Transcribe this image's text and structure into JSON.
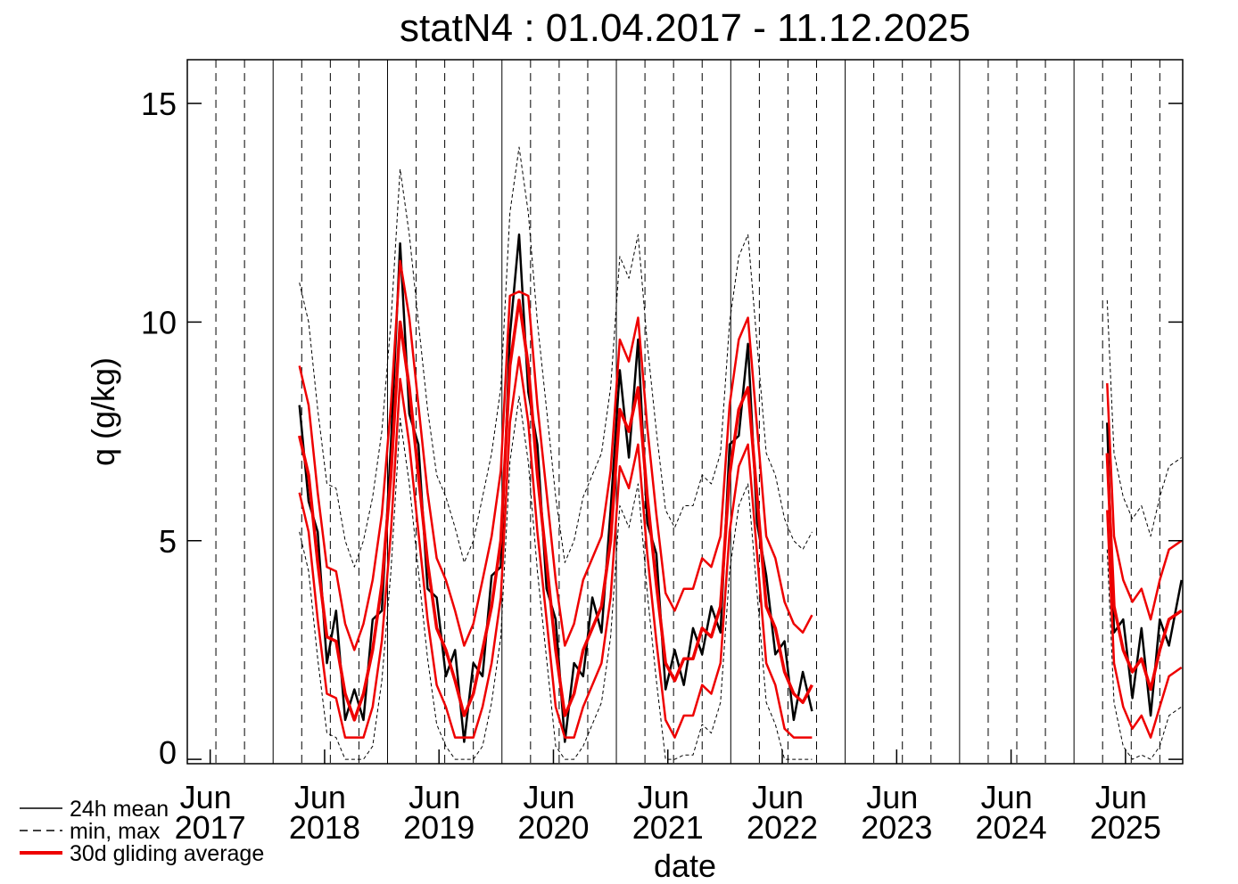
{
  "chart_data": {
    "type": "line",
    "title": "statN4 : 01.04.2017 - 11.12.2025",
    "xlabel": "date",
    "ylabel": "q (g/kg)",
    "xlim": [
      2017.25,
      2025.95
    ],
    "ylim": [
      -0.1,
      16
    ],
    "yticks": [
      0,
      5,
      10,
      15
    ],
    "xticks": [
      {
        "value": 2017.45,
        "label": "Jun 2017"
      },
      {
        "value": 2018.45,
        "label": "Jun 2018"
      },
      {
        "value": 2019.45,
        "label": "Jun 2019"
      },
      {
        "value": 2020.45,
        "label": "Jun 2020"
      },
      {
        "value": 2021.45,
        "label": "Jun 2021"
      },
      {
        "value": 2022.45,
        "label": "Jun 2022"
      },
      {
        "value": 2023.45,
        "label": "Jun 2023"
      },
      {
        "value": 2024.45,
        "label": "Jun 2024"
      },
      {
        "value": 2025.45,
        "label": "Jun 2025"
      }
    ],
    "x": [
      2018.23,
      2018.31,
      2018.39,
      2018.47,
      2018.55,
      2018.63,
      2018.71,
      2018.79,
      2018.87,
      2018.95,
      2019.03,
      2019.11,
      2019.19,
      2019.27,
      2019.35,
      2019.43,
      2019.51,
      2019.59,
      2019.67,
      2019.75,
      2019.83,
      2019.91,
      2019.99,
      2020.07,
      2020.15,
      2020.23,
      2020.31,
      2020.39,
      2020.47,
      2020.55,
      2020.63,
      2020.71,
      2020.79,
      2020.87,
      2020.95,
      2021.03,
      2021.11,
      2021.19,
      2021.27,
      2021.35,
      2021.43,
      2021.51,
      2021.59,
      2021.67,
      2021.75,
      2021.83,
      2021.91,
      2021.99,
      2022.07,
      2022.15,
      2022.23,
      2022.31,
      2022.39,
      2022.47,
      2022.55,
      2022.63,
      2022.71,
      2024.0,
      2025.29,
      2025.35,
      2025.43,
      2025.51,
      2025.59,
      2025.67,
      2025.75,
      2025.83,
      2025.94
    ],
    "series": [
      {
        "name": "24h mean",
        "color": "#000000",
        "values": [
          8.1,
          5.9,
          5.2,
          2.2,
          3.4,
          0.9,
          1.6,
          0.9,
          3.2,
          3.4,
          7.2,
          11.8,
          7.9,
          7.2,
          3.9,
          3.7,
          1.9,
          2.5,
          0.4,
          2.2,
          1.9,
          4.2,
          4.4,
          9.7,
          12.0,
          8.4,
          7.2,
          3.9,
          3.2,
          0.4,
          2.2,
          1.9,
          3.7,
          2.9,
          5.7,
          8.9,
          6.9,
          9.6,
          5.4,
          4.7,
          1.6,
          2.5,
          1.7,
          3.0,
          2.4,
          3.5,
          2.9,
          7.2,
          7.4,
          9.5,
          5.4,
          4.2,
          2.4,
          2.7,
          0.9,
          2.0,
          1.1,
          null,
          7.7,
          2.9,
          3.2,
          1.4,
          3.0,
          1.0,
          3.2,
          2.6,
          4.1
        ]
      },
      {
        "name": "min, max",
        "color": "#000000",
        "dashed": true,
        "min": [
          5.2,
          4.3,
          2.3,
          0.6,
          0.5,
          0,
          0,
          0,
          0.3,
          1.8,
          4.3,
          7.8,
          6.3,
          4.3,
          2.3,
          0.8,
          0.3,
          0,
          0,
          0,
          0.3,
          1.3,
          2.8,
          6.8,
          8.3,
          6.8,
          4.3,
          2.3,
          0.3,
          0,
          0,
          0.3,
          0.8,
          1.3,
          2.8,
          5.8,
          5.3,
          6.3,
          3.8,
          1.8,
          0,
          0,
          0.1,
          0.1,
          0.8,
          0.6,
          1.3,
          4.3,
          5.8,
          6.3,
          3.8,
          1.3,
          0.8,
          0,
          0,
          0,
          0,
          null,
          4.8,
          1.3,
          0.3,
          0,
          0.1,
          0,
          0.3,
          1.0,
          1.2
        ],
        "max": [
          10.9,
          10.0,
          8.0,
          6.3,
          6.2,
          5.0,
          4.4,
          5.0,
          6.0,
          7.5,
          10.0,
          13.5,
          12.0,
          10.0,
          8.0,
          6.5,
          6.0,
          5.3,
          4.5,
          5.0,
          6.0,
          7.0,
          8.5,
          12.5,
          14.0,
          12.5,
          10.0,
          8.0,
          6.0,
          4.5,
          5.0,
          6.0,
          6.5,
          7.0,
          8.5,
          11.5,
          11.0,
          12.0,
          9.5,
          7.5,
          5.7,
          5.3,
          5.8,
          5.8,
          6.5,
          6.3,
          7.0,
          10.0,
          11.5,
          12.0,
          9.5,
          7.0,
          6.5,
          5.5,
          5.0,
          4.8,
          5.2,
          null,
          10.5,
          7.0,
          6.0,
          5.5,
          5.8,
          5.1,
          6.0,
          6.7,
          6.9
        ]
      },
      {
        "name": "30d gliding average",
        "color": "#ee0000",
        "values": [
          7.4,
          6.5,
          4.5,
          2.8,
          2.7,
          1.5,
          0.9,
          1.5,
          2.5,
          4.0,
          6.5,
          10.0,
          8.5,
          6.5,
          4.5,
          3.0,
          2.5,
          1.8,
          1.0,
          1.5,
          2.5,
          3.5,
          5.0,
          9.0,
          10.5,
          9.0,
          6.5,
          4.5,
          2.5,
          1.0,
          1.5,
          2.5,
          3.0,
          3.5,
          5.0,
          8.0,
          7.5,
          8.5,
          6.0,
          4.0,
          2.2,
          1.8,
          2.3,
          2.3,
          3.0,
          2.8,
          3.5,
          6.5,
          8.0,
          8.5,
          6.0,
          3.5,
          3.0,
          2.0,
          1.5,
          1.3,
          1.7,
          null,
          7.0,
          3.5,
          2.5,
          2.0,
          2.3,
          1.6,
          2.5,
          3.2,
          3.4
        ],
        "min": [
          6.1,
          5.2,
          3.2,
          1.5,
          1.4,
          0.5,
          0.5,
          0.5,
          1.2,
          2.7,
          5.2,
          8.7,
          7.2,
          5.2,
          3.2,
          1.7,
          1.2,
          0.5,
          0.5,
          0.5,
          1.2,
          2.2,
          3.7,
          7.7,
          9.2,
          7.7,
          5.2,
          3.2,
          1.2,
          0.5,
          0.5,
          1.2,
          1.7,
          2.2,
          3.7,
          6.7,
          6.2,
          7.2,
          4.7,
          2.7,
          0.9,
          0.5,
          1.0,
          1.0,
          1.7,
          1.5,
          2.2,
          5.2,
          6.7,
          7.2,
          4.7,
          2.2,
          1.7,
          0.7,
          0.5,
          0.5,
          0.5,
          null,
          5.7,
          2.2,
          1.2,
          0.7,
          1.0,
          0.5,
          1.2,
          1.9,
          2.1
        ],
        "max": [
          9.0,
          8.1,
          6.1,
          4.4,
          4.3,
          3.1,
          2.5,
          3.1,
          4.1,
          5.6,
          8.1,
          11.4,
          10.1,
          8.1,
          6.1,
          4.6,
          4.1,
          3.4,
          2.6,
          3.1,
          4.1,
          5.1,
          6.6,
          10.6,
          10.7,
          10.6,
          8.1,
          6.1,
          4.1,
          2.6,
          3.1,
          4.1,
          4.6,
          5.1,
          6.6,
          9.6,
          9.1,
          10.1,
          7.6,
          5.6,
          3.8,
          3.4,
          3.9,
          3.9,
          4.6,
          4.4,
          5.1,
          8.1,
          9.6,
          10.1,
          7.6,
          5.1,
          4.6,
          3.6,
          3.1,
          2.9,
          3.3,
          null,
          8.6,
          5.1,
          4.1,
          3.6,
          3.9,
          3.2,
          4.1,
          4.8,
          5.0
        ]
      }
    ]
  }
}
